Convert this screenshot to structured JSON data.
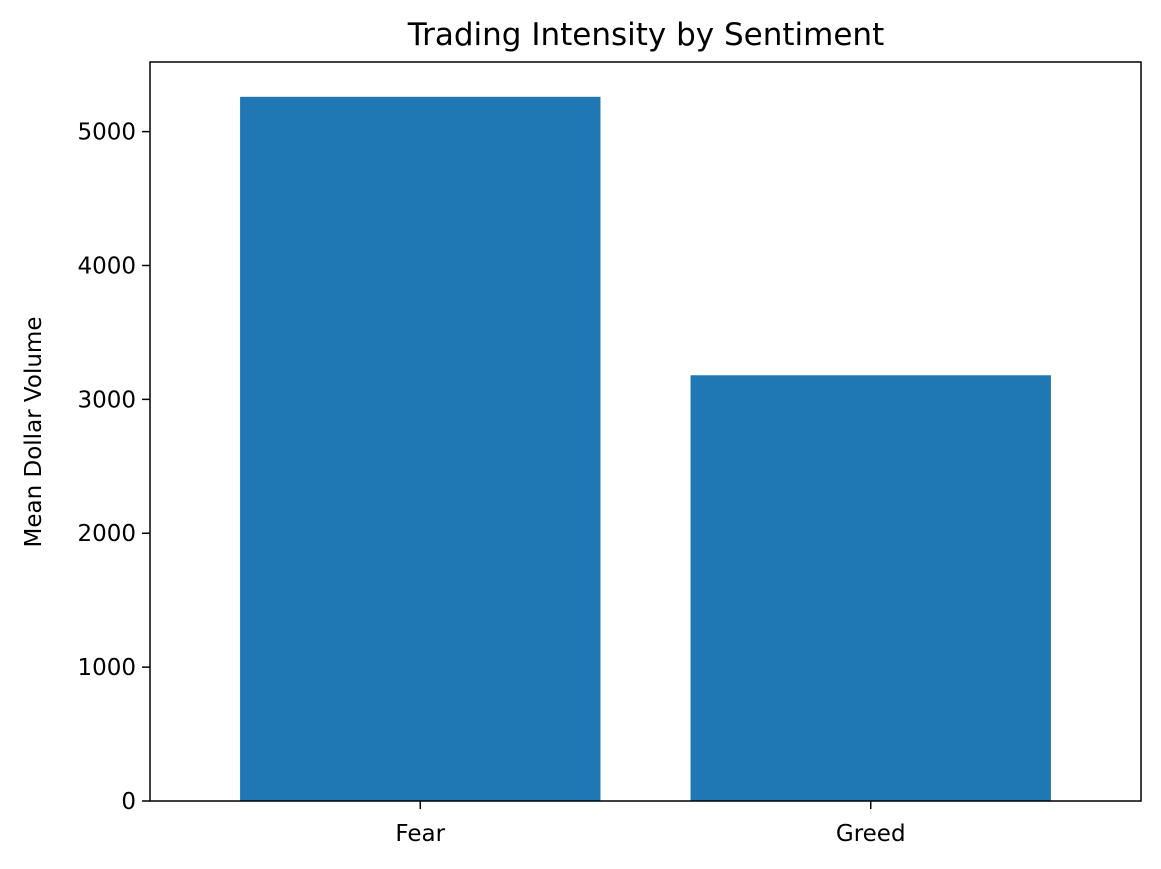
{
  "chart_data": {
    "type": "bar",
    "title": "Trading Intensity by Sentiment",
    "xlabel": "",
    "ylabel": "Mean Dollar Volume",
    "categories": [
      "Fear",
      "Greed"
    ],
    "values": [
      5260,
      3180
    ],
    "ylim": [
      0,
      5520
    ],
    "yticks": [
      0,
      1000,
      2000,
      3000,
      4000,
      5000
    ],
    "bar_color": "#1f77b4",
    "grid": false,
    "legend": "none"
  }
}
